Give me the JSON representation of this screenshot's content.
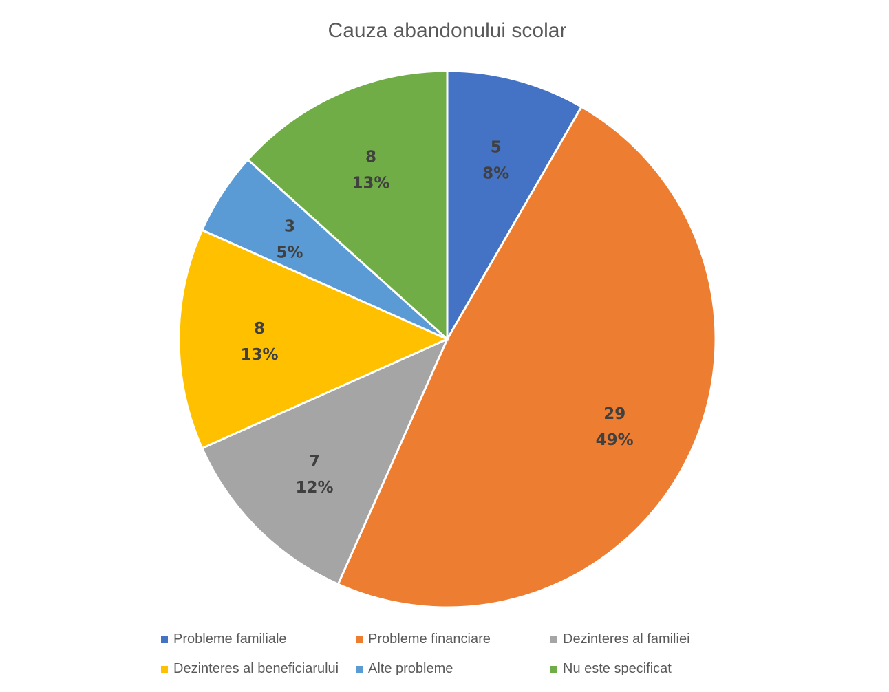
{
  "chart_data": {
    "type": "pie",
    "title": "Cauza abandonului scolar",
    "legend_position": "bottom",
    "slices": [
      {
        "label": "Probleme familiale",
        "value": 5,
        "percent_label": "8%",
        "color": "#4472C4"
      },
      {
        "label": "Probleme financiare",
        "value": 29,
        "percent_label": "49%",
        "color": "#ED7D31"
      },
      {
        "label": "Dezinteres al familiei",
        "value": 7,
        "percent_label": "12%",
        "color": "#A5A5A5"
      },
      {
        "label": "Dezinteres al beneficiarului",
        "value": 8,
        "percent_label": "13%",
        "color": "#FFC000"
      },
      {
        "label": "Alte probleme",
        "value": 3,
        "percent_label": "5%",
        "color": "#5B9BD5"
      },
      {
        "label": "Nu este specificat",
        "value": 8,
        "percent_label": "13%",
        "color": "#70AD47"
      }
    ]
  }
}
